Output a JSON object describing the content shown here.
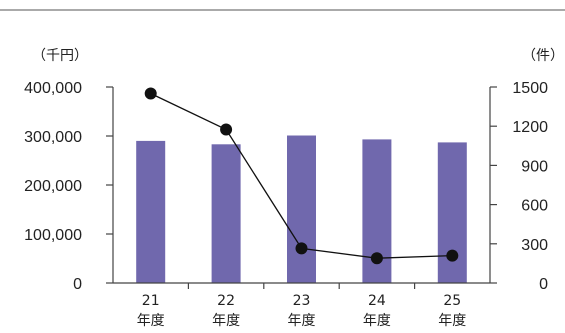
{
  "chart_data": {
    "type": "bar",
    "categories": [
      [
        "21",
        "年度"
      ],
      [
        "22",
        "年度"
      ],
      [
        "23",
        "年度"
      ],
      [
        "24",
        "年度"
      ],
      [
        "25",
        "年度"
      ]
    ],
    "series": [
      {
        "type": "bar",
        "axis": "left",
        "values": [
          290000,
          283000,
          301000,
          293000,
          287000
        ],
        "color": "#7068ad"
      },
      {
        "type": "line",
        "axis": "right",
        "values": [
          1450,
          1175,
          265,
          190,
          210
        ],
        "color": "#111111"
      }
    ],
    "left_axis": {
      "unit_label": "（千円）",
      "ylim": [
        0,
        400000
      ],
      "ticks": [
        0,
        100000,
        200000,
        300000,
        400000
      ],
      "tick_labels": [
        "0",
        "100,000",
        "200,000",
        "300,000",
        "400,000"
      ]
    },
    "right_axis": {
      "unit_label": "（件）",
      "ylim": [
        0,
        1500
      ],
      "ticks": [
        0,
        300,
        600,
        900,
        1200,
        1500
      ],
      "tick_labels": [
        "0",
        "300",
        "600",
        "900",
        "1200",
        "1500"
      ]
    },
    "grid": false,
    "legend": "none"
  }
}
